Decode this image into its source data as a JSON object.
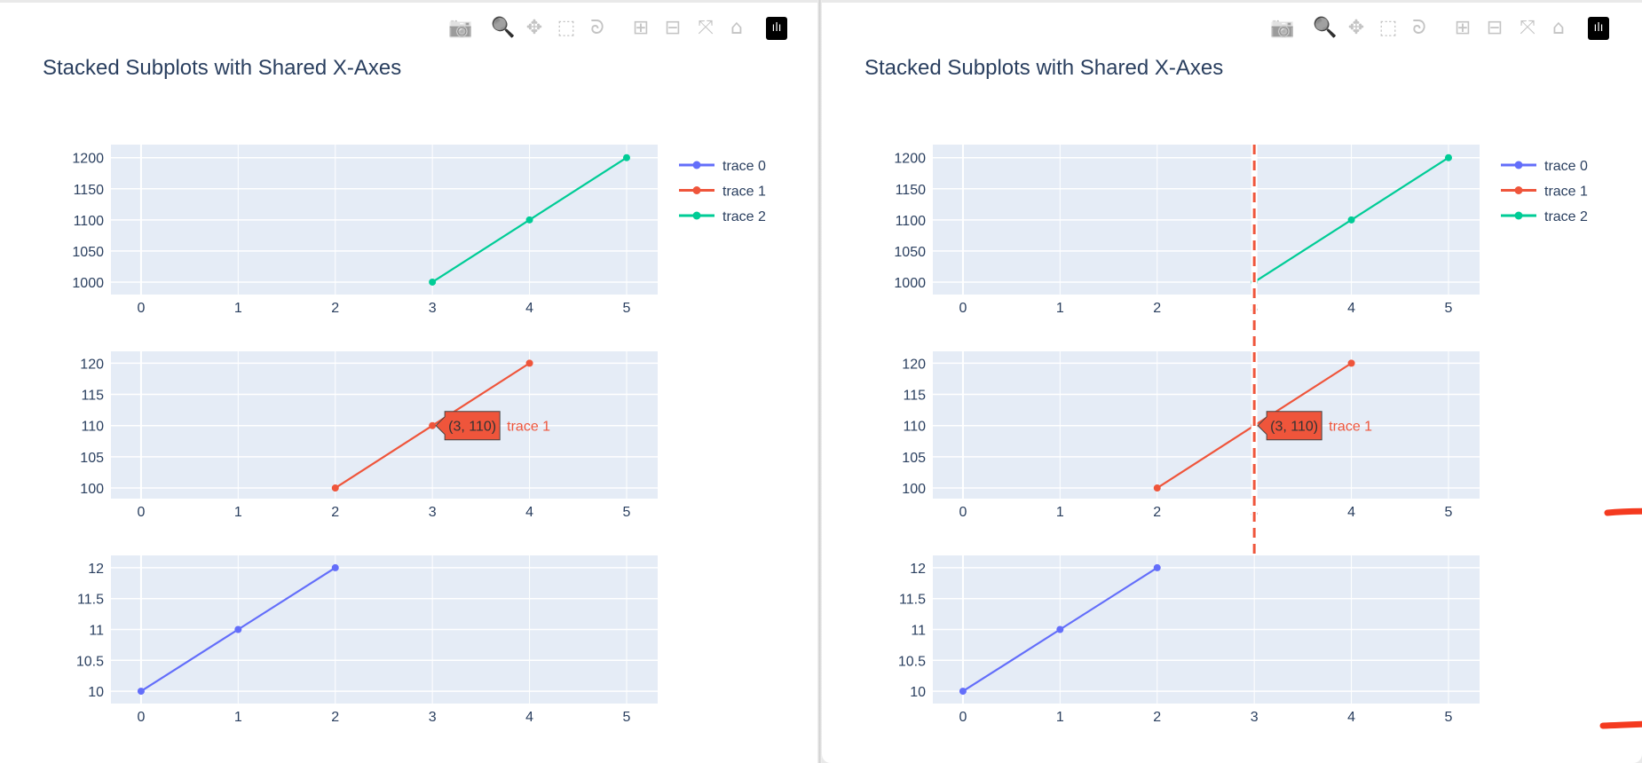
{
  "modebar": {
    "items": [
      {
        "name": "camera-icon",
        "glyph": "📷",
        "label": "Download plot as a png"
      },
      {
        "name": "zoom-icon",
        "glyph": "🔍",
        "label": "Zoom",
        "active": true
      },
      {
        "name": "pan-icon",
        "glyph": "✥",
        "label": "Pan"
      },
      {
        "name": "box-select-icon",
        "glyph": "⬚",
        "label": "Box Select"
      },
      {
        "name": "lasso-select-icon",
        "glyph": "ᘐ",
        "label": "Lasso Select"
      },
      {
        "name": "zoom-in-icon",
        "glyph": "⊞",
        "label": "Zoom in"
      },
      {
        "name": "zoom-out-icon",
        "glyph": "⊟",
        "label": "Zoom out"
      },
      {
        "name": "autoscale-icon",
        "glyph": "⤧",
        "label": "Autoscale"
      },
      {
        "name": "reset-axes-icon",
        "glyph": "⌂",
        "label": "Reset axes"
      },
      {
        "name": "plotly-logo-icon",
        "glyph": "ılı",
        "label": "Produced with Plotly"
      }
    ]
  },
  "panels": [
    {
      "spike": false
    },
    {
      "spike": true
    }
  ],
  "colors": {
    "trace0": "#636efa",
    "trace1": "#ef553b",
    "trace2": "#00cc96",
    "plot_bg": "#e5ecf6",
    "text": "#2a3f5f",
    "annotation_arrow": "#f43a1f"
  },
  "chart_data": {
    "type": "line",
    "title": "Stacked Subplots with Shared X-Axes",
    "x_ticks": [
      "0",
      "1",
      "2",
      "3",
      "4",
      "5"
    ],
    "xlim": [
      -0.31,
      5.32
    ],
    "grid": true,
    "legend_placement": "top-right",
    "subplots": [
      {
        "trace": 2,
        "ylim": [
          980,
          1221
        ],
        "y_ticks": [
          1000,
          1050,
          1100,
          1150,
          1200
        ],
        "y_tick_labels": [
          "1000",
          "1050",
          "1100",
          "1150",
          "1200"
        ]
      },
      {
        "trace": 1,
        "ylim": [
          98.3,
          121.9
        ],
        "y_ticks": [
          100,
          105,
          110,
          115,
          120
        ],
        "y_tick_labels": [
          "100",
          "105",
          "110",
          "115",
          "120"
        ]
      },
      {
        "trace": 0,
        "ylim": [
          9.8,
          12.2
        ],
        "y_ticks": [
          10,
          10.5,
          11,
          11.5,
          12
        ],
        "y_tick_labels": [
          "10",
          "10.5",
          "11",
          "11.5",
          "12"
        ]
      }
    ],
    "series": [
      {
        "name": "trace 0",
        "x": [
          0,
          1,
          2
        ],
        "y": [
          10,
          11,
          12
        ]
      },
      {
        "name": "trace 1",
        "x": [
          2,
          3,
          4
        ],
        "y": [
          100,
          110,
          120
        ]
      },
      {
        "name": "trace 2",
        "x": [
          3,
          4,
          5
        ],
        "y": [
          1000,
          1100,
          1200
        ]
      }
    ],
    "hover": {
      "series": 1,
      "x": 3,
      "y": 110,
      "text": "(3, 110)",
      "name": "trace 1"
    }
  }
}
